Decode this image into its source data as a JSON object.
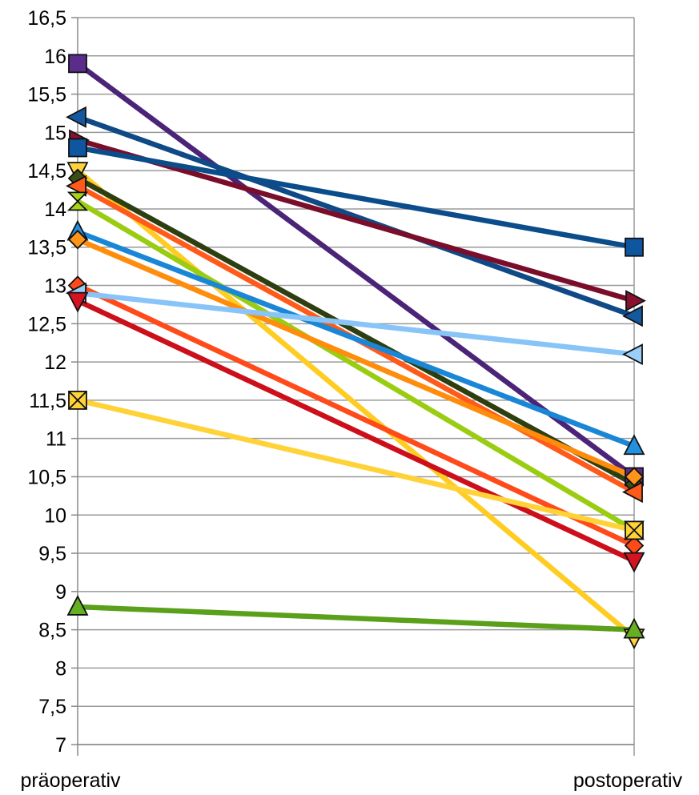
{
  "chart_data": {
    "type": "line",
    "categories": [
      "präoperativ",
      "postoperativ"
    ],
    "ylim": [
      7,
      16.5
    ],
    "ytick_step": 0.5,
    "ytick_labels": [
      "7",
      "7,5",
      "8",
      "8,5",
      "9",
      "9,5",
      "10",
      "10,5",
      "11",
      "11,5",
      "12",
      "12,5",
      "13",
      "13,5",
      "14",
      "14,5",
      "15",
      "15,5",
      "16",
      "16,5"
    ],
    "grid": "horizontal",
    "series": [
      {
        "values": [
          15.9,
          10.5
        ],
        "color": "#4B2478",
        "marker": "square",
        "marker_color": "#5A2D8A"
      },
      {
        "values": [
          15.2,
          12.6
        ],
        "color": "#0F4A86",
        "marker": "triangle-left",
        "marker_color": "#1458A0"
      },
      {
        "values": [
          14.9,
          12.8
        ],
        "color": "#7A0E2A",
        "marker": "triangle-right",
        "marker_color": "#8B1030"
      },
      {
        "values": [
          14.8,
          13.5
        ],
        "color": "#0B4C8A",
        "marker": "square",
        "marker_color": "#0E56A0"
      },
      {
        "values": [
          14.5,
          8.4
        ],
        "color": "#FFCC22",
        "marker": "triangle-down",
        "marker_color": "#FFD23A"
      },
      {
        "values": [
          14.4,
          10.4
        ],
        "color": "#2D3F10",
        "marker": "diamond",
        "marker_color": "#3A4E18"
      },
      {
        "values": [
          14.3,
          10.3
        ],
        "color": "#FF5A1A",
        "marker": "triangle-left",
        "marker_color": "#FF5A1A"
      },
      {
        "values": [
          14.1,
          9.8
        ],
        "color": "#9ACD12",
        "marker": "hourglass",
        "marker_color": "#A6D41A"
      },
      {
        "values": [
          13.7,
          10.9
        ],
        "color": "#1A86D6",
        "marker": "triangle-up",
        "marker_color": "#2291E0"
      },
      {
        "values": [
          13.6,
          10.5
        ],
        "color": "#FF8C0A",
        "marker": "diamond",
        "marker_color": "#FF9518"
      },
      {
        "values": [
          13.0,
          9.6
        ],
        "color": "#FF4A1A",
        "marker": "diamond",
        "marker_color": "#FF4A1A"
      },
      {
        "values": [
          12.9,
          12.1
        ],
        "color": "#88C4F8",
        "marker": "triangle-left",
        "marker_color": "#9ACFFA"
      },
      {
        "values": [
          12.8,
          9.4
        ],
        "color": "#CC0F1A",
        "marker": "triangle-down",
        "marker_color": "#D41420"
      },
      {
        "values": [
          11.5,
          9.8
        ],
        "color": "#FFD238",
        "marker": "x-square",
        "marker_color": "#FFD238"
      },
      {
        "values": [
          8.8,
          8.5
        ],
        "color": "#5AA01A",
        "marker": "triangle-up",
        "marker_color": "#66AE22"
      }
    ]
  }
}
